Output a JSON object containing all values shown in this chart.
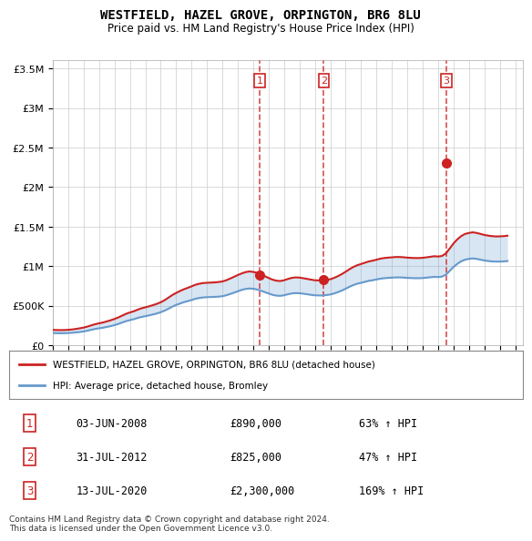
{
  "title": "WESTFIELD, HAZEL GROVE, ORPINGTON, BR6 8LU",
  "subtitle": "Price paid vs. HM Land Registry's House Price Index (HPI)",
  "ylabel_ticks": [
    "£0",
    "£500K",
    "£1M",
    "£1.5M",
    "£2M",
    "£2.5M",
    "£3M",
    "£3.5M"
  ],
  "ytick_values": [
    0,
    500000,
    1000000,
    1500000,
    2000000,
    2500000,
    3000000,
    3500000
  ],
  "ylim": [
    0,
    3600000
  ],
  "xlim_start": 1995.0,
  "xlim_end": 2025.5,
  "hpi_color": "#6699cc",
  "price_color": "#cc2222",
  "sale_marker_color": "#cc2222",
  "background_color": "#f0f4ff",
  "plot_bg_color": "#ffffff",
  "grid_color": "#cccccc",
  "sale1_x": 2008.42,
  "sale1_y": 890000,
  "sale2_x": 2012.58,
  "sale2_y": 825000,
  "sale3_x": 2020.53,
  "sale3_y": 2300000,
  "sale1_label": "03-JUN-2008",
  "sale1_price": "£890,000",
  "sale1_hpi": "63% ↑ HPI",
  "sale2_label": "31-JUL-2012",
  "sale2_price": "£825,000",
  "sale2_hpi": "47% ↑ HPI",
  "sale3_label": "13-JUL-2020",
  "sale3_price": "£2,300,000",
  "sale3_hpi": "169% ↑ HPI",
  "legend_line1": "WESTFIELD, HAZEL GROVE, ORPINGTON, BR6 8LU (detached house)",
  "legend_line2": "HPI: Average price, detached house, Bromley",
  "footnote1": "Contains HM Land Registry data © Crown copyright and database right 2024.",
  "footnote2": "This data is licensed under the Open Government Licence v3.0.",
  "hpi_data_x": [
    1995.0,
    1995.25,
    1995.5,
    1995.75,
    1996.0,
    1996.25,
    1996.5,
    1996.75,
    1997.0,
    1997.25,
    1997.5,
    1997.75,
    1998.0,
    1998.25,
    1998.5,
    1998.75,
    1999.0,
    1999.25,
    1999.5,
    1999.75,
    2000.0,
    2000.25,
    2000.5,
    2000.75,
    2001.0,
    2001.25,
    2001.5,
    2001.75,
    2002.0,
    2002.25,
    2002.5,
    2002.75,
    2003.0,
    2003.25,
    2003.5,
    2003.75,
    2004.0,
    2004.25,
    2004.5,
    2004.75,
    2005.0,
    2005.25,
    2005.5,
    2005.75,
    2006.0,
    2006.25,
    2006.5,
    2006.75,
    2007.0,
    2007.25,
    2007.5,
    2007.75,
    2008.0,
    2008.25,
    2008.5,
    2008.75,
    2009.0,
    2009.25,
    2009.5,
    2009.75,
    2010.0,
    2010.25,
    2010.5,
    2010.75,
    2011.0,
    2011.25,
    2011.5,
    2011.75,
    2012.0,
    2012.25,
    2012.5,
    2012.75,
    2013.0,
    2013.25,
    2013.5,
    2013.75,
    2014.0,
    2014.25,
    2014.5,
    2014.75,
    2015.0,
    2015.25,
    2015.5,
    2015.75,
    2016.0,
    2016.25,
    2016.5,
    2016.75,
    2017.0,
    2017.25,
    2017.5,
    2017.75,
    2018.0,
    2018.25,
    2018.5,
    2018.75,
    2019.0,
    2019.25,
    2019.5,
    2019.75,
    2020.0,
    2020.25,
    2020.5,
    2020.75,
    2021.0,
    2021.25,
    2021.5,
    2021.75,
    2022.0,
    2022.25,
    2022.5,
    2022.75,
    2023.0,
    2023.25,
    2023.5,
    2023.75,
    2024.0,
    2024.25,
    2024.5
  ],
  "hpi_data_y": [
    155000,
    153000,
    152000,
    153000,
    155000,
    158000,
    163000,
    168000,
    175000,
    185000,
    196000,
    207000,
    215000,
    222000,
    232000,
    242000,
    255000,
    270000,
    288000,
    305000,
    318000,
    330000,
    345000,
    358000,
    368000,
    378000,
    390000,
    402000,
    418000,
    438000,
    462000,
    488000,
    510000,
    528000,
    545000,
    558000,
    572000,
    588000,
    598000,
    605000,
    608000,
    610000,
    612000,
    615000,
    620000,
    632000,
    648000,
    665000,
    682000,
    700000,
    712000,
    718000,
    715000,
    705000,
    690000,
    672000,
    655000,
    638000,
    628000,
    625000,
    632000,
    645000,
    655000,
    660000,
    658000,
    652000,
    645000,
    638000,
    632000,
    630000,
    630000,
    635000,
    642000,
    655000,
    672000,
    692000,
    715000,
    740000,
    762000,
    778000,
    790000,
    802000,
    815000,
    822000,
    832000,
    842000,
    848000,
    852000,
    855000,
    858000,
    858000,
    856000,
    852000,
    850000,
    848000,
    848000,
    850000,
    855000,
    860000,
    865000,
    862000,
    868000,
    892000,
    940000,
    990000,
    1030000,
    1062000,
    1082000,
    1092000,
    1098000,
    1092000,
    1082000,
    1072000,
    1065000,
    1060000,
    1058000,
    1058000,
    1060000,
    1065000
  ],
  "price_data_x": [
    1995.0,
    1995.25,
    1995.5,
    1995.75,
    1996.0,
    1996.25,
    1996.5,
    1996.75,
    1997.0,
    1997.25,
    1997.5,
    1997.75,
    1998.0,
    1998.25,
    1998.5,
    1998.75,
    1999.0,
    1999.25,
    1999.5,
    1999.75,
    2000.0,
    2000.25,
    2000.5,
    2000.75,
    2001.0,
    2001.25,
    2001.5,
    2001.75,
    2002.0,
    2002.25,
    2002.5,
    2002.75,
    2003.0,
    2003.25,
    2003.5,
    2003.75,
    2004.0,
    2004.25,
    2004.5,
    2004.75,
    2005.0,
    2005.25,
    2005.5,
    2005.75,
    2006.0,
    2006.25,
    2006.5,
    2006.75,
    2007.0,
    2007.25,
    2007.5,
    2007.75,
    2008.0,
    2008.25,
    2008.5,
    2008.75,
    2009.0,
    2009.25,
    2009.5,
    2009.75,
    2010.0,
    2010.25,
    2010.5,
    2010.75,
    2011.0,
    2011.25,
    2011.5,
    2011.75,
    2012.0,
    2012.25,
    2012.5,
    2012.75,
    2013.0,
    2013.25,
    2013.5,
    2013.75,
    2014.0,
    2014.25,
    2014.5,
    2014.75,
    2015.0,
    2015.25,
    2015.5,
    2015.75,
    2016.0,
    2016.25,
    2016.5,
    2016.75,
    2017.0,
    2017.25,
    2017.5,
    2017.75,
    2018.0,
    2018.25,
    2018.5,
    2018.75,
    2019.0,
    2019.25,
    2019.5,
    2019.75,
    2020.0,
    2020.25,
    2020.5,
    2020.75,
    2021.0,
    2021.25,
    2021.5,
    2021.75,
    2022.0,
    2022.25,
    2022.5,
    2022.75,
    2023.0,
    2023.25,
    2023.5,
    2023.75,
    2024.0,
    2024.25,
    2024.5
  ],
  "price_data_y": [
    195000,
    193000,
    192000,
    193000,
    196000,
    200000,
    207000,
    215000,
    224000,
    237000,
    252000,
    267000,
    278000,
    288000,
    302000,
    316000,
    333000,
    352000,
    375000,
    398000,
    415000,
    430000,
    450000,
    467000,
    480000,
    493000,
    508000,
    524000,
    544000,
    570000,
    602000,
    635000,
    662000,
    686000,
    708000,
    726000,
    745000,
    765000,
    778000,
    787000,
    790000,
    793000,
    795000,
    800000,
    807000,
    822000,
    843000,
    865000,
    888000,
    908000,
    925000,
    933000,
    928000,
    916000,
    897000,
    874000,
    851000,
    830000,
    817000,
    812000,
    822000,
    838000,
    852000,
    858000,
    856000,
    848000,
    839000,
    830000,
    822000,
    820000,
    820000,
    826000,
    835000,
    852000,
    874000,
    900000,
    930000,
    962000,
    990000,
    1012000,
    1028000,
    1044000,
    1060000,
    1070000,
    1082000,
    1095000,
    1103000,
    1108000,
    1112000,
    1116000,
    1116000,
    1113000,
    1108000,
    1105000,
    1103000,
    1103000,
    1106000,
    1112000,
    1119000,
    1126000,
    1122000,
    1129000,
    1161000,
    1223000,
    1288000,
    1340000,
    1381000,
    1408000,
    1420000,
    1428000,
    1420000,
    1408000,
    1395000,
    1386000,
    1380000,
    1376000,
    1377000,
    1380000,
    1385000
  ]
}
